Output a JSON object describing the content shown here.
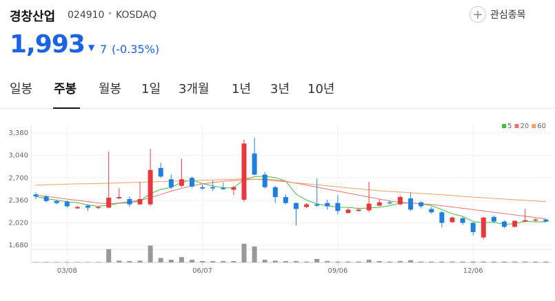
{
  "header": {
    "name": "경창산업",
    "code": "024910",
    "market": "KOSDAQ",
    "price": "1,993",
    "change": "7",
    "change_rate": "(-0.35%)",
    "favorite": "관심종목",
    "tabs": [
      "일봉",
      "주봉",
      "월봉",
      "1일",
      "3개월",
      "1년",
      "3년",
      "10년"
    ],
    "selected_tab": 1
  },
  "chart_data": {
    "type": "candlestick",
    "categories": [
      null,
      null,
      null,
      "03/08",
      null,
      null,
      null,
      null,
      null,
      null,
      null,
      null,
      null,
      null,
      null,
      null,
      "06/07",
      null,
      null,
      null,
      null,
      null,
      null,
      null,
      null,
      null,
      null,
      null,
      null,
      "09/06",
      null,
      null,
      null,
      null,
      null,
      null,
      null,
      null,
      null,
      null,
      null,
      null,
      "12/06",
      null,
      null,
      null,
      null,
      null,
      null,
      null
    ],
    "open": [
      2450,
      2420,
      2350,
      2340,
      2240,
      2280,
      2250,
      2250,
      2390,
      2380,
      2300,
      2300,
      2850,
      2680,
      2580,
      2700,
      2560,
      2560,
      2550,
      2520,
      2370,
      3070,
      2750,
      2560,
      2410,
      2320,
      2260,
      2300,
      2320,
      2320,
      2170,
      2200,
      2210,
      2280,
      2330,
      2300,
      2390,
      2330,
      2230,
      2180,
      2030,
      2090,
      2020,
      1800,
      2110,
      2040,
      1960,
      2040,
      2060,
      2070
    ],
    "high": [
      2480,
      2440,
      2370,
      2360,
      2280,
      2300,
      2270,
      3100,
      2545,
      2420,
      2640,
      3140,
      2930,
      2750,
      2990,
      2720,
      2600,
      2660,
      2630,
      2580,
      3280,
      3310,
      2790,
      2580,
      2450,
      2330,
      2320,
      2690,
      2370,
      2440,
      2240,
      2240,
      2640,
      2380,
      2360,
      2430,
      2480,
      2350,
      2260,
      2200,
      2120,
      2110,
      2030,
      2110,
      2130,
      2060,
      2060,
      2230,
      2090,
      2080
    ],
    "low": [
      2380,
      2330,
      2300,
      2250,
      2230,
      2200,
      2230,
      2240,
      2380,
      2260,
      2290,
      2280,
      2700,
      2530,
      2560,
      2550,
      2520,
      2500,
      2520,
      2440,
      2340,
      2740,
      2540,
      2320,
      2300,
      1980,
      2240,
      2260,
      2220,
      2150,
      2160,
      2190,
      2180,
      2270,
      2300,
      2290,
      2200,
      2240,
      2160,
      1950,
      2020,
      1990,
      1830,
      1770,
      2020,
      1940,
      1950,
      2030,
      2040,
      2030
    ],
    "close": [
      2420,
      2350,
      2320,
      2270,
      2260,
      2250,
      2260,
      2400,
      2410,
      2300,
      2380,
      2820,
      2720,
      2560,
      2680,
      2570,
      2540,
      2540,
      2530,
      2560,
      3220,
      2750,
      2560,
      2410,
      2320,
      2230,
      2300,
      2280,
      2270,
      2200,
      2220,
      2220,
      2310,
      2330,
      2320,
      2410,
      2220,
      2270,
      2180,
      2020,
      2100,
      2020,
      1880,
      2100,
      2040,
      1960,
      2050,
      2060,
      2070,
      2040
    ],
    "volume": [
      1,
      1,
      1,
      1,
      1,
      1,
      1,
      30,
      4,
      3,
      4,
      38,
      10,
      6,
      12,
      6,
      3,
      3,
      3,
      3,
      42,
      36,
      6,
      4,
      3,
      3,
      2,
      8,
      3,
      2,
      2,
      2,
      6,
      3,
      2,
      3,
      5,
      2,
      2,
      2,
      2,
      2,
      2,
      2,
      2,
      2,
      2,
      2,
      2,
      2
    ],
    "volume_ylim": [
      0,
      45
    ],
    "up_color": "#e8383d",
    "down_color": "#1f7fe0",
    "volume_color": "#999999",
    "series": [
      {
        "name": "5",
        "color": "#3cbf3c",
        "values": [
          2420,
          2385,
          2363,
          2340,
          2324,
          2290,
          2272,
          2288,
          2316,
          2324,
          2350,
          2462,
          2526,
          2556,
          2632,
          2670,
          2614,
          2578,
          2552,
          2548,
          2678,
          2720,
          2724,
          2706,
          2652,
          2454,
          2364,
          2308,
          2280,
          2256,
          2254,
          2238,
          2244,
          2256,
          2280,
          2318,
          2318,
          2310,
          2280,
          2220,
          2158,
          2118,
          2040,
          2024,
          2028,
          2000,
          2006,
          2042,
          2036,
          2036
        ]
      },
      {
        "name": "20",
        "color": "#f07070",
        "values": [
          2440,
          2420,
          2400,
          2380,
          2360,
          2340,
          2320,
          2310,
          2320,
          2340,
          2360,
          2400,
          2450,
          2500,
          2540,
          2580,
          2610,
          2630,
          2650,
          2660,
          2670,
          2680,
          2680,
          2670,
          2650,
          2620,
          2590,
          2560,
          2530,
          2500,
          2470,
          2440,
          2410,
          2380,
          2350,
          2330,
          2320,
          2310,
          2300,
          2280,
          2260,
          2240,
          2220,
          2200,
          2180,
          2160,
          2140,
          2120,
          2100,
          2080
        ]
      },
      {
        "name": "60",
        "color": "#f0a060",
        "values": [
          2590,
          2595,
          2600,
          2605,
          2610,
          2612,
          2615,
          2620,
          2625,
          2630,
          2635,
          2640,
          2645,
          2650,
          2655,
          2660,
          2665,
          2670,
          2675,
          2680,
          2685,
          2680,
          2670,
          2655,
          2640,
          2625,
          2610,
          2595,
          2580,
          2565,
          2550,
          2535,
          2520,
          2505,
          2495,
          2485,
          2475,
          2465,
          2455,
          2445,
          2435,
          2420,
          2410,
          2400,
          2390,
          2380,
          2370,
          2360,
          2350,
          2340
        ]
      }
    ],
    "ylim": [
      1640,
      3495
    ],
    "yticks": [
      {
        "value": 1680,
        "label": "1,680"
      },
      {
        "value": 2020,
        "label": "2,020"
      },
      {
        "value": 2360,
        "label": "2,360"
      },
      {
        "value": 2700,
        "label": "2,700"
      },
      {
        "value": 3040,
        "label": "3,040"
      },
      {
        "value": 3380,
        "label": "3,380"
      }
    ],
    "grid": true,
    "legend": "top-right"
  }
}
